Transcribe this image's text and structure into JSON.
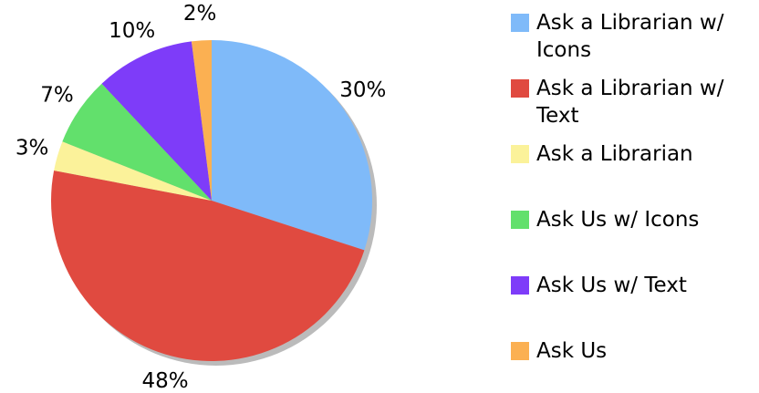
{
  "chart_data": {
    "type": "pie",
    "categories": [
      "Ask a Librarian w/ Icons",
      "Ask a Librarian w/ Text",
      "Ask a Librarian",
      "Ask Us w/ Icons",
      "Ask Us w/ Text",
      "Ask Us"
    ],
    "values": [
      30,
      48,
      3,
      7,
      10,
      2
    ],
    "value_labels": [
      "30%",
      "48%",
      "3%",
      "7%",
      "10%",
      "2%"
    ],
    "colors": [
      "#7fbaf9",
      "#e04a40",
      "#fbf29a",
      "#62e06c",
      "#7e3cf9",
      "#fbb052"
    ]
  }
}
